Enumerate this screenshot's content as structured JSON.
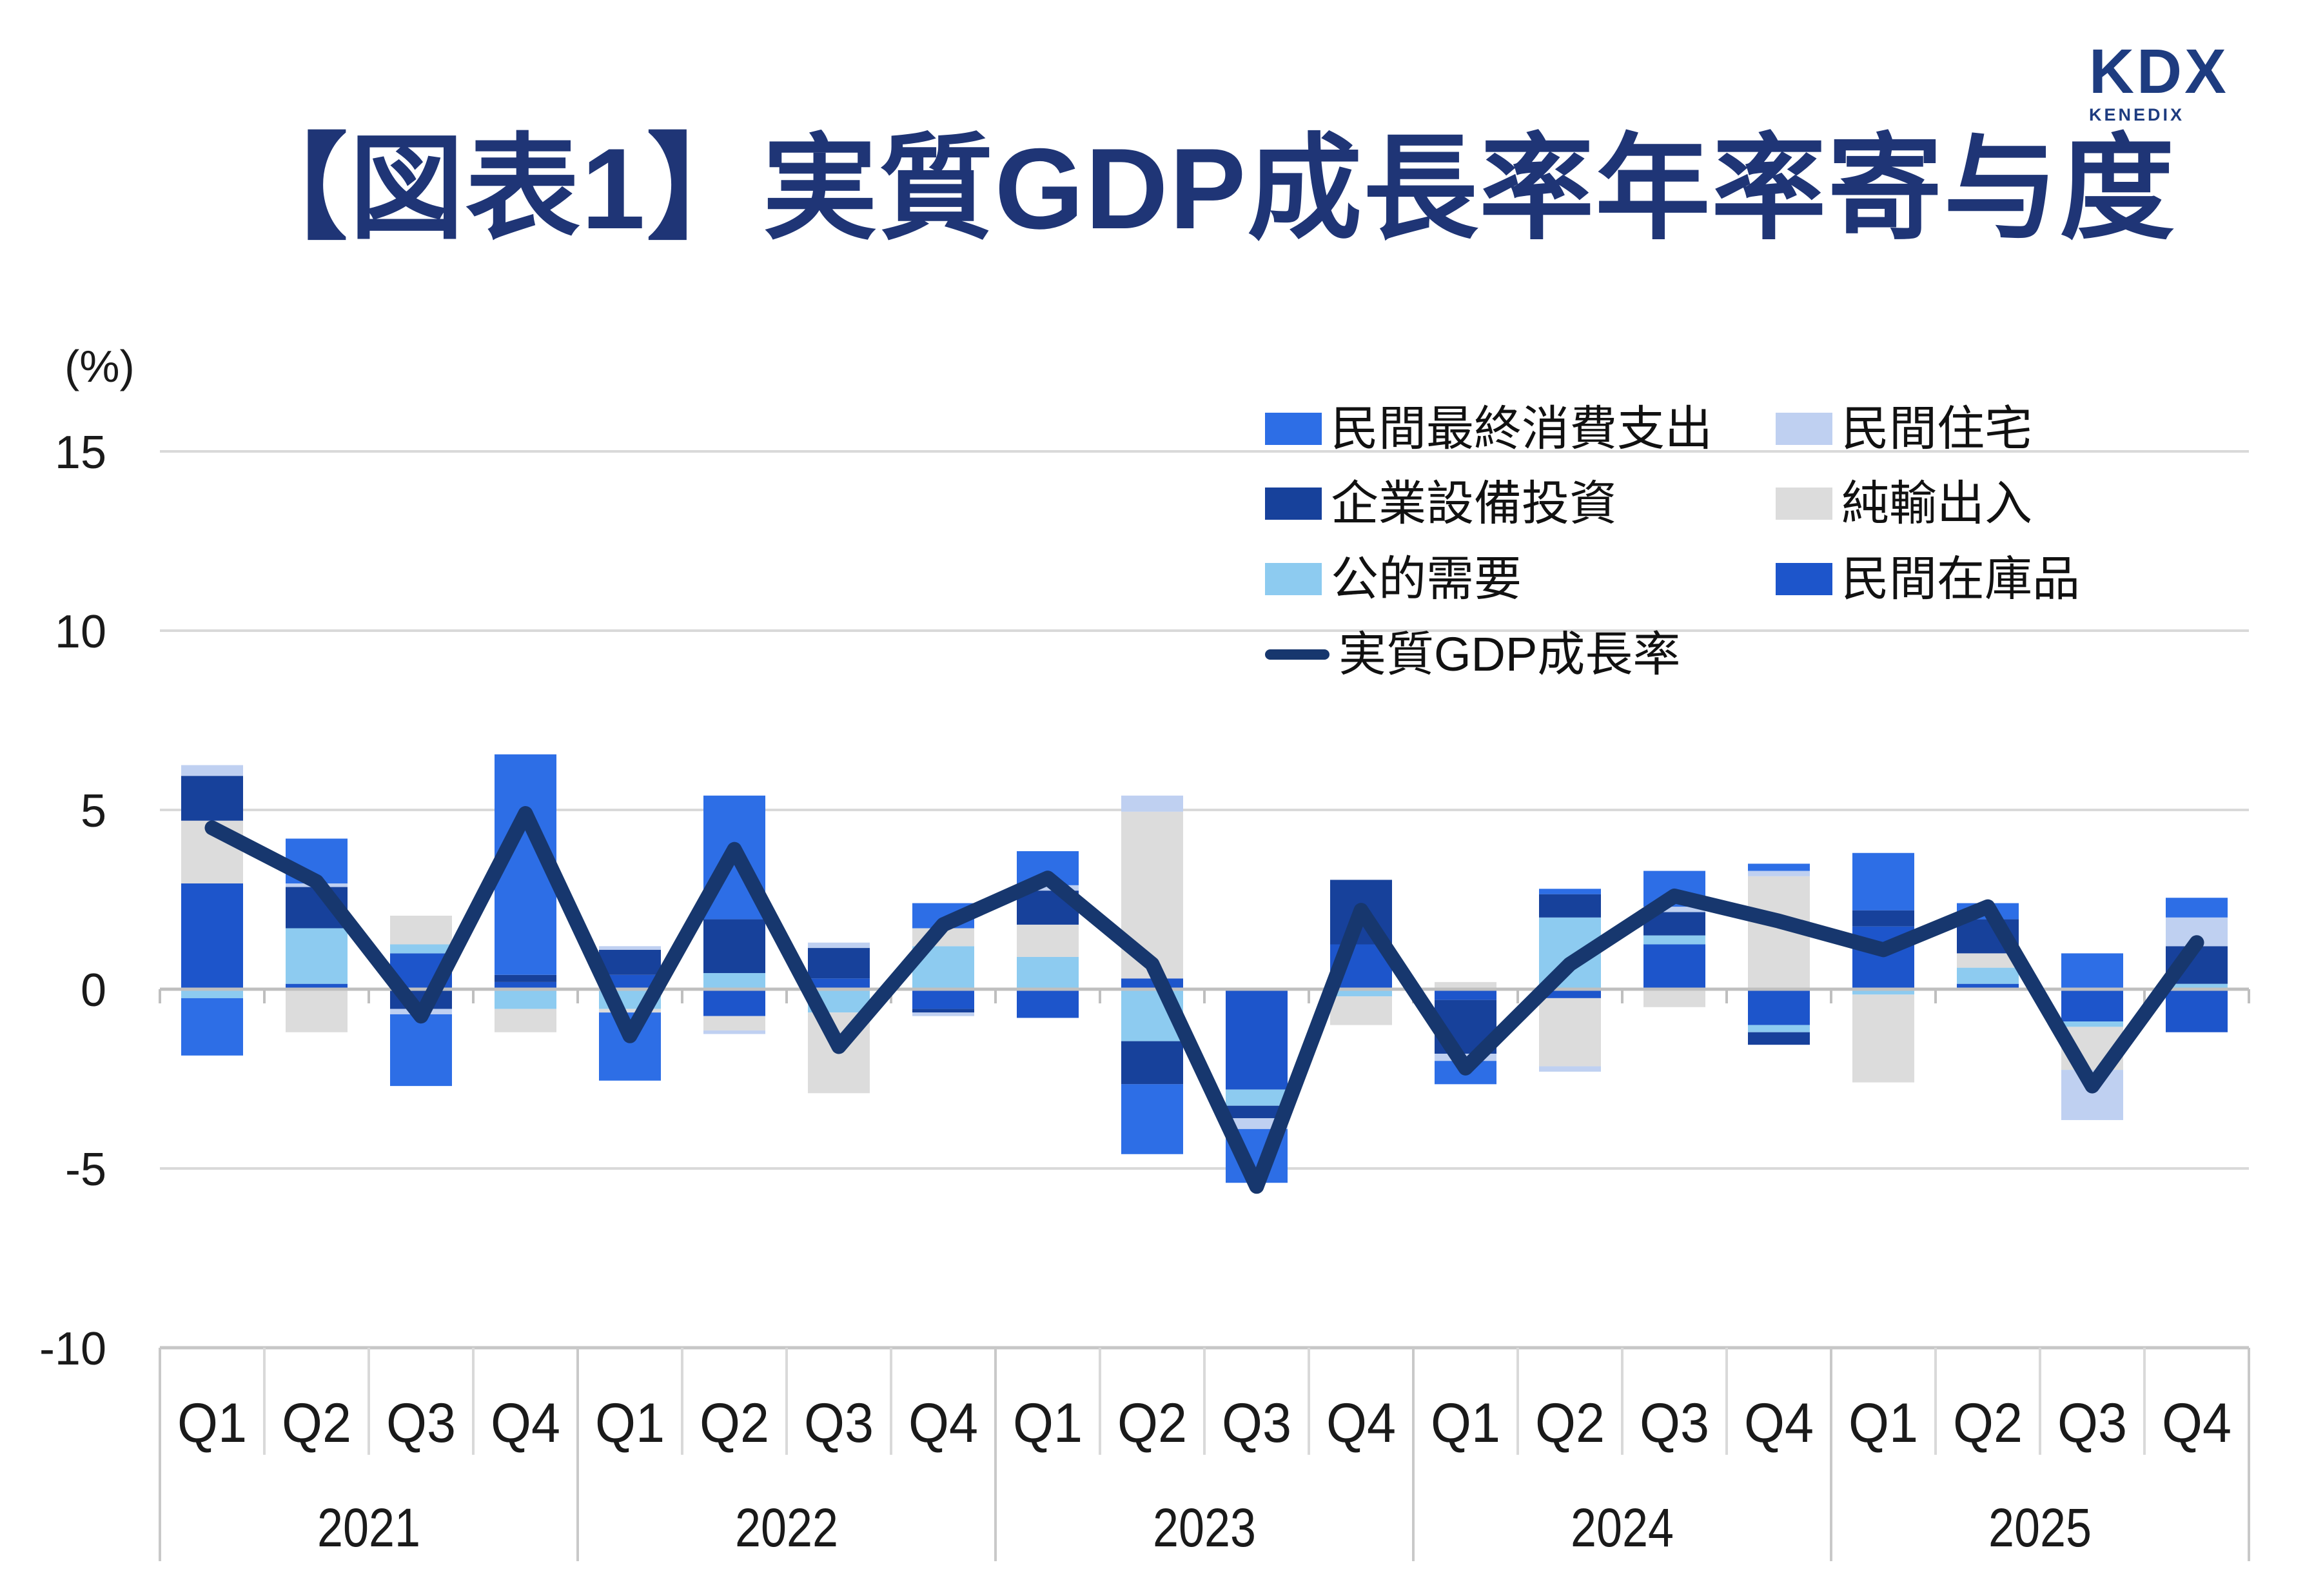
{
  "header": {
    "title": "【図表1】実質GDP成長率年率寄与度",
    "logo": {
      "text": "KDX",
      "subtext": "KENEDIX"
    }
  },
  "axis": {
    "unit_label": "(%)"
  },
  "legend": {
    "items": [
      {
        "label": "民間最終消費支出",
        "color": "#2D6EE6",
        "type": "box"
      },
      {
        "label": "民間住宅",
        "color": "#BFD0F1",
        "type": "box"
      },
      {
        "label": "企業設備投資",
        "color": "#17419B",
        "type": "box"
      },
      {
        "label": "純輸出入",
        "color": "#DCDCDC",
        "type": "box"
      },
      {
        "label": "公的需要",
        "color": "#8DCBF0",
        "type": "box"
      },
      {
        "label": "民間在庫品",
        "color": "#1D55CB",
        "type": "box"
      },
      {
        "label": "実質GDP成長率",
        "color": "#17376E",
        "type": "line"
      }
    ]
  },
  "chart_data": {
    "type": "bar",
    "stacked": true,
    "title": "【図表1】実質GDP成長率年率寄与度",
    "ylabel": "(%)",
    "ylim": [
      -10,
      15
    ],
    "y_ticks": [
      15,
      10,
      5,
      0,
      -5,
      -10
    ],
    "grid": "horizontal",
    "legend_position": "upper-right-inside",
    "years": [
      "2021",
      "2022",
      "2023",
      "2024",
      "2025"
    ],
    "quarters": [
      "Q1",
      "Q2",
      "Q3",
      "Q4"
    ],
    "categories": [
      "2021 Q1",
      "2021 Q2",
      "2021 Q3",
      "2021 Q4",
      "2022 Q1",
      "2022 Q2",
      "2022 Q3",
      "2022 Q4",
      "2023 Q1",
      "2023 Q2",
      "2023 Q3",
      "2023 Q4",
      "2024 Q1",
      "2024 Q2",
      "2024 Q3",
      "2024 Q4",
      "2025 Q1",
      "2025 Q2",
      "2025 Q3",
      "2025 Q4"
    ],
    "stack_order_from_baseline": [
      "民間在庫品",
      "公的需要",
      "純輸出入",
      "企業設備投資",
      "民間住宅",
      "民間最終消費支出"
    ],
    "series": [
      {
        "name": "民間最終消費支出",
        "color": "#2D6EE6",
        "values": [
          -1.6,
          1.25,
          -2.0,
          6.15,
          -1.9,
          3.45,
          0,
          0.7,
          0.95,
          -1.95,
          -1.5,
          0,
          -0.65,
          0.15,
          1.0,
          0.2,
          1.6,
          0.45,
          1.0,
          0.55
        ]
      },
      {
        "name": "民間住宅",
        "color": "#BFD0F1",
        "values": [
          0.3,
          0.1,
          -0.15,
          0,
          0.1,
          -0.1,
          0.15,
          -0.1,
          0.15,
          0.45,
          -0.3,
          0,
          -0.2,
          -0.15,
          0.15,
          0.15,
          0,
          0,
          -1.4,
          0.8
        ]
      },
      {
        "name": "企業設備投資",
        "color": "#17419B",
        "values": [
          1.25,
          1.15,
          -0.55,
          0.2,
          0.7,
          1.5,
          0.85,
          -0.1,
          0.95,
          -1.2,
          -0.35,
          1.8,
          -1.5,
          0.65,
          0.65,
          -0.35,
          0.45,
          0.95,
          0,
          1.05
        ]
      },
      {
        "name": "純輸出入",
        "color": "#DCDCDC",
        "values": [
          1.75,
          -1.2,
          0.8,
          -0.65,
          -0.1,
          -0.4,
          -2.25,
          0.5,
          0.9,
          4.65,
          0,
          -0.8,
          0.2,
          -1.9,
          -0.5,
          3.15,
          -2.45,
          0.4,
          -1.2,
          0
        ]
      },
      {
        "name": "公的需要",
        "color": "#8DCBF0",
        "values": [
          -0.25,
          1.55,
          0.25,
          -0.55,
          -0.55,
          0.45,
          -0.65,
          1.2,
          0.9,
          -1.45,
          -0.45,
          -0.2,
          0,
          2.0,
          0.25,
          -0.2,
          -0.15,
          0.45,
          -0.15,
          0.15
        ]
      },
      {
        "name": "民間在庫品",
        "color": "#1D55CB",
        "values": [
          2.95,
          0.15,
          1.0,
          0.2,
          0.4,
          -0.75,
          0.3,
          -0.55,
          -0.8,
          0.3,
          -2.8,
          1.25,
          -0.3,
          -0.25,
          1.25,
          -1.0,
          1.75,
          0.15,
          -0.9,
          -1.2
        ]
      }
    ],
    "line_series": {
      "name": "実質GDP成長率",
      "color": "#17376E",
      "values": [
        4.5,
        3.0,
        -0.75,
        4.9,
        -1.3,
        3.9,
        -1.6,
        1.8,
        3.1,
        0.7,
        -5.5,
        2.2,
        -2.2,
        0.7,
        2.6,
        1.9,
        1.1,
        2.3,
        -2.7,
        1.3
      ]
    }
  }
}
